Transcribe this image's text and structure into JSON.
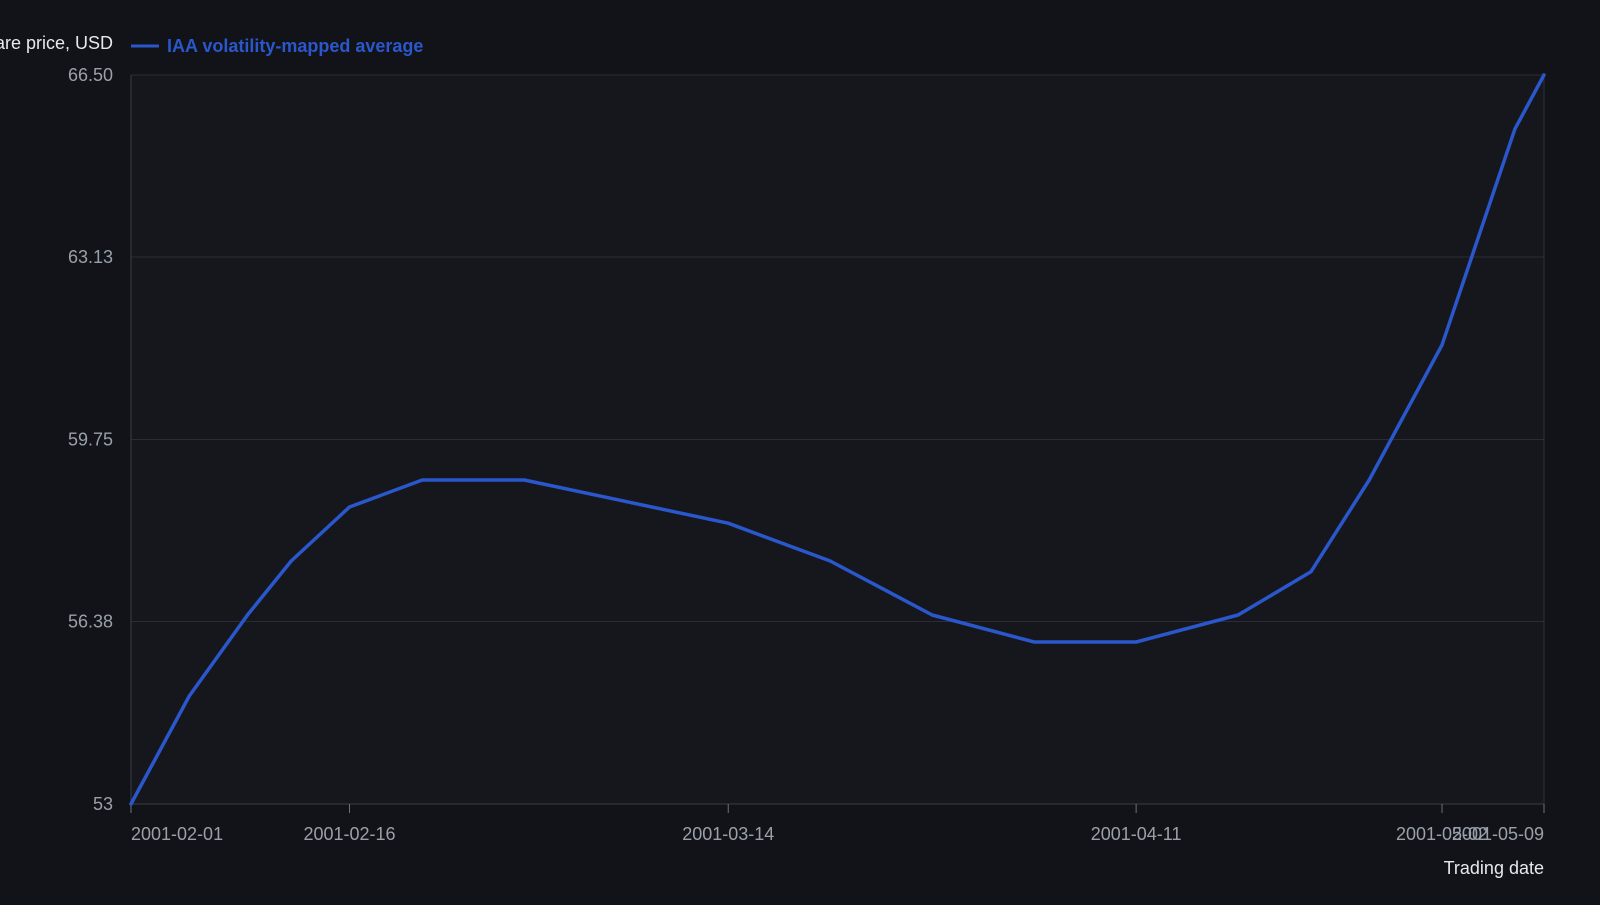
{
  "chart_data": {
    "type": "line",
    "ylabel": "Share price, USD",
    "xlabel": "Trading date",
    "ylim": [
      53,
      66.5
    ],
    "yticks": [
      "53",
      "56.38",
      "59.75",
      "63.13",
      "66.50"
    ],
    "xticks": [
      "2001-02-01",
      "2001-02-16",
      "2001-03-14",
      "2001-04-11",
      "2001-05-02",
      "2001-05-09"
    ],
    "grid": true,
    "legend_position": "top-left",
    "series": [
      {
        "name": "IAA volatility-mapped average",
        "color": "#2b57cc",
        "points": [
          {
            "x": "2001-02-01",
            "y": 53.0
          },
          {
            "x": "2001-02-05",
            "y": 55.0
          },
          {
            "x": "2001-02-09",
            "y": 56.5
          },
          {
            "x": "2001-02-12",
            "y": 57.5
          },
          {
            "x": "2001-02-16",
            "y": 58.5
          },
          {
            "x": "2001-02-21",
            "y": 59.0
          },
          {
            "x": "2001-02-28",
            "y": 59.0
          },
          {
            "x": "2001-03-07",
            "y": 58.6
          },
          {
            "x": "2001-03-14",
            "y": 58.2
          },
          {
            "x": "2001-03-21",
            "y": 57.5
          },
          {
            "x": "2001-03-28",
            "y": 56.5
          },
          {
            "x": "2001-04-04",
            "y": 56.0
          },
          {
            "x": "2001-04-11",
            "y": 56.0
          },
          {
            "x": "2001-04-18",
            "y": 56.5
          },
          {
            "x": "2001-04-23",
            "y": 57.3
          },
          {
            "x": "2001-04-27",
            "y": 59.0
          },
          {
            "x": "2001-05-02",
            "y": 61.5
          },
          {
            "x": "2001-05-07",
            "y": 65.5
          },
          {
            "x": "2001-05-09",
            "y": 66.5
          }
        ]
      }
    ]
  }
}
